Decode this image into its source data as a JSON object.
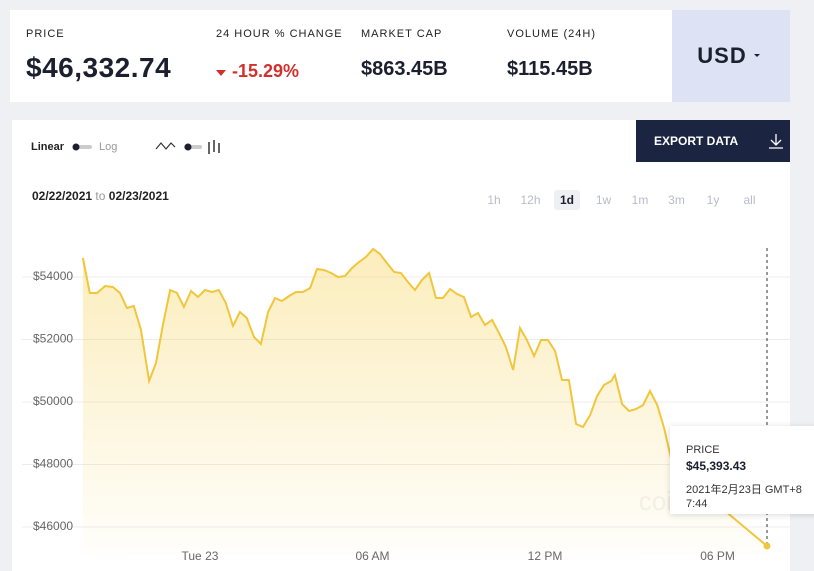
{
  "header": {
    "stats": [
      {
        "label": "PRICE",
        "value": "$46,332.74"
      },
      {
        "label": "24 HOUR % CHANGE",
        "value": "-15.29%"
      },
      {
        "label": "MARKET CAP",
        "value": "$863.45B"
      },
      {
        "label": "VOLUME (24H)",
        "value": "$115.45B"
      }
    ],
    "currency": "USD"
  },
  "controls": {
    "scale_options": [
      "Linear",
      "Log"
    ],
    "export": "EXPORT DATA",
    "date_from": "02/22/2021",
    "date_sep": "to",
    "date_to": "02/23/2021",
    "ranges": [
      "1h",
      "12h",
      "1d",
      "1w",
      "1m",
      "3m",
      "1y",
      "all"
    ],
    "selected_range": "1d"
  },
  "chart_data": {
    "type": "line",
    "color": "#f0c63c",
    "grid": true,
    "x": [
      -4.07,
      -3.83,
      -3.58,
      -3.3,
      -3.03,
      -2.78,
      -2.54,
      -2.3,
      -2.05,
      -1.77,
      -1.53,
      -1.29,
      -1.04,
      -0.8,
      -0.56,
      -0.31,
      -0.07,
      0.17,
      0.42,
      0.66,
      0.9,
      1.15,
      1.39,
      1.63,
      1.88,
      2.12,
      2.37,
      2.61,
      2.85,
      3.1,
      3.34,
      3.58,
      3.83,
      4.07,
      4.31,
      4.56,
      4.8,
      5.04,
      5.29,
      5.53,
      5.77,
      6.02,
      6.26,
      6.5,
      6.75,
      6.99,
      7.23,
      7.48,
      7.72,
      7.97,
      8.21,
      8.45,
      8.7,
      8.94,
      9.18,
      9.43,
      9.67,
      9.91,
      10.16,
      10.4,
      10.64,
      10.89,
      11.13,
      11.37,
      11.62,
      11.86,
      12.1,
      12.35,
      12.59,
      12.83,
      13.08,
      13.32,
      13.57,
      13.81,
      14.05,
      14.3,
      14.43,
      14.68,
      14.92,
      15.17,
      15.41,
      15.65,
      15.9,
      16.14,
      16.38,
      17.39,
      18.43,
      19.72
    ],
    "values": [
      54608,
      53488,
      53488,
      53712,
      53680,
      53488,
      53008,
      53072,
      52304,
      50672,
      51248,
      52464,
      53584,
      53488,
      53040,
      53552,
      53360,
      53584,
      53520,
      53584,
      53168,
      52432,
      52880,
      52688,
      52080,
      51856,
      52880,
      53328,
      53232,
      53392,
      53520,
      53520,
      53648,
      54256,
      54224,
      54128,
      54000,
      54032,
      54288,
      54480,
      54640,
      54896,
      54736,
      54448,
      54160,
      54128,
      53840,
      53584,
      53904,
      54128,
      53328,
      53328,
      53616,
      53456,
      53360,
      52720,
      52848,
      52464,
      52624,
      52208,
      51760,
      51024,
      52368,
      51984,
      51472,
      51984,
      51984,
      51632,
      50704,
      50704,
      49296,
      49200,
      49584,
      50192,
      50544,
      50672,
      50864,
      49936,
      49712,
      49776,
      49904,
      50352,
      49904,
      49168,
      48208,
      47184,
      46384,
      45393.43
    ],
    "xlim": [
      -4.52,
      20.52
    ],
    "ylim": [
      45104,
      55504
    ],
    "xticks": [
      {
        "value": 0,
        "label": "Tue 23"
      },
      {
        "value": 6,
        "label": "06 AM"
      },
      {
        "value": 12,
        "label": "12 PM"
      },
      {
        "value": 18,
        "label": "06 PM"
      }
    ],
    "yticks": [
      {
        "value": 46000,
        "label": "$46000"
      },
      {
        "value": 48000,
        "label": "$48000"
      },
      {
        "value": 50000,
        "label": "$50000"
      },
      {
        "value": 52000,
        "label": "$52000"
      },
      {
        "value": 54000,
        "label": "$54000"
      }
    ],
    "tooltip": {
      "label": "PRICE",
      "value": "$45,393.43",
      "time": "2021年2月23日 GMT+8 7:44"
    },
    "watermark": "coindesk"
  }
}
